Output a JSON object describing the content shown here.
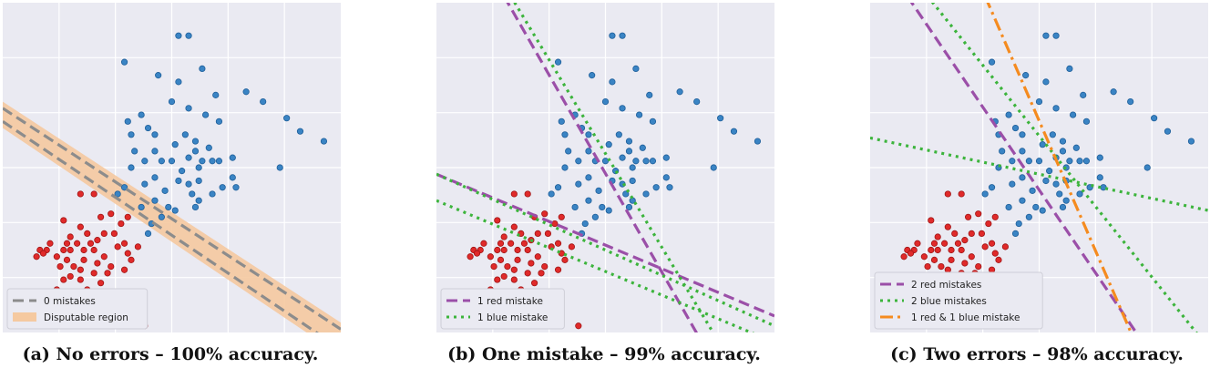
{
  "chart_data": [
    {
      "type": "scatter",
      "caption": "(a) No errors – 100% accuracy.",
      "legend": [
        {
          "label": "0 mistakes",
          "style": "dashed",
          "color": "#8c8c8c"
        },
        {
          "label": "Disputable region",
          "style": "patch",
          "color": "#f5c9a0"
        }
      ],
      "lines": [
        {
          "name": "0 mistakes",
          "color": "#8c8c8c",
          "dash": "dashed",
          "points": [
            [
              0.0,
              0.64
            ],
            [
              1.0,
              -0.05
            ]
          ]
        },
        {
          "name": "0 mistakes",
          "color": "#8c8c8c",
          "dash": "dashed",
          "points": [
            [
              0.0,
              0.68
            ],
            [
              1.0,
              0.01
            ]
          ]
        }
      ],
      "region": {
        "color": "#f5c9a0",
        "polygon": [
          [
            0.0,
            0.7
          ],
          [
            1.0,
            0.03
          ],
          [
            1.0,
            -0.07
          ],
          [
            0.0,
            0.62
          ]
        ]
      },
      "legend_position": "lower left"
    },
    {
      "type": "scatter",
      "caption": "(b) One mistake – 99% accuracy.",
      "legend": [
        {
          "label": "1 red mistake",
          "style": "dashed",
          "color": "#9b4fa8"
        },
        {
          "label": "1 blue mistake",
          "style": "dotted",
          "color": "#3cb43c"
        }
      ],
      "lines": [
        {
          "name": "1 red mistake",
          "color": "#9b4fa8",
          "dash": "dashed",
          "points": [
            [
              0.0,
              0.48
            ],
            [
              1.0,
              0.05
            ]
          ]
        },
        {
          "name": "1 red mistake",
          "color": "#9b4fa8",
          "dash": "dashed",
          "points": [
            [
              0.2,
              1.02
            ],
            [
              0.78,
              -0.02
            ]
          ]
        },
        {
          "name": "1 blue mistake",
          "color": "#3cb43c",
          "dash": "dotted",
          "points": [
            [
              0.0,
              0.48
            ],
            [
              1.0,
              0.02
            ]
          ]
        },
        {
          "name": "1 blue mistake",
          "color": "#3cb43c",
          "dash": "dotted",
          "points": [
            [
              0.0,
              0.4
            ],
            [
              1.0,
              -0.03
            ]
          ]
        },
        {
          "name": "1 blue mistake",
          "color": "#3cb43c",
          "dash": "dotted",
          "points": [
            [
              0.22,
              1.02
            ],
            [
              0.83,
              -0.02
            ]
          ]
        }
      ],
      "legend_position": "lower left"
    },
    {
      "type": "scatter",
      "caption": "(c) Two errors – 98% accuracy.",
      "legend": [
        {
          "label": "2 red mistakes",
          "style": "dashed",
          "color": "#9b4fa8"
        },
        {
          "label": "2 blue mistakes",
          "style": "dotted",
          "color": "#3cb43c"
        },
        {
          "label": "1 red & 1 blue mistake",
          "style": "dashdot",
          "color": "#f58b1f"
        }
      ],
      "lines": [
        {
          "name": "2 red mistakes",
          "color": "#9b4fa8",
          "dash": "dashed",
          "points": [
            [
              0.11,
              1.02
            ],
            [
              0.8,
              -0.02
            ]
          ]
        },
        {
          "name": "2 blue mistakes",
          "color": "#3cb43c",
          "dash": "dotted",
          "points": [
            [
              0.17,
              1.02
            ],
            [
              0.98,
              -0.02
            ]
          ]
        },
        {
          "name": "2 blue mistakes",
          "color": "#3cb43c",
          "dash": "dotted",
          "points": [
            [
              0.0,
              0.59
            ],
            [
              1.0,
              0.37
            ]
          ]
        },
        {
          "name": "1 red & 1 blue mistake",
          "color": "#f58b1f",
          "dash": "dashdot",
          "points": [
            [
              0.34,
              1.02
            ],
            [
              0.78,
              -0.02
            ]
          ]
        }
      ],
      "legend_position": "lower left"
    }
  ],
  "points": {
    "blue": [
      [
        0.52,
        0.9
      ],
      [
        0.55,
        0.9
      ],
      [
        0.36,
        0.82
      ],
      [
        0.46,
        0.78
      ],
      [
        0.52,
        0.76
      ],
      [
        0.59,
        0.8
      ],
      [
        0.72,
        0.73
      ],
      [
        0.77,
        0.7
      ],
      [
        0.5,
        0.7
      ],
      [
        0.55,
        0.68
      ],
      [
        0.63,
        0.72
      ],
      [
        0.6,
        0.66
      ],
      [
        0.64,
        0.64
      ],
      [
        0.41,
        0.66
      ],
      [
        0.37,
        0.64
      ],
      [
        0.43,
        0.62
      ],
      [
        0.45,
        0.6
      ],
      [
        0.54,
        0.6
      ],
      [
        0.57,
        0.58
      ],
      [
        0.51,
        0.57
      ],
      [
        0.61,
        0.56
      ],
      [
        0.64,
        0.52
      ],
      [
        0.59,
        0.52
      ],
      [
        0.55,
        0.53
      ],
      [
        0.47,
        0.52
      ],
      [
        0.42,
        0.52
      ],
      [
        0.38,
        0.6
      ],
      [
        0.39,
        0.55
      ],
      [
        0.68,
        0.53
      ],
      [
        0.84,
        0.65
      ],
      [
        0.88,
        0.61
      ],
      [
        0.95,
        0.58
      ],
      [
        0.82,
        0.5
      ],
      [
        0.69,
        0.44
      ],
      [
        0.68,
        0.47
      ],
      [
        0.55,
        0.45
      ],
      [
        0.52,
        0.46
      ],
      [
        0.48,
        0.43
      ],
      [
        0.45,
        0.47
      ],
      [
        0.42,
        0.45
      ],
      [
        0.49,
        0.38
      ],
      [
        0.51,
        0.37
      ],
      [
        0.56,
        0.42
      ],
      [
        0.58,
        0.46
      ],
      [
        0.62,
        0.52
      ],
      [
        0.38,
        0.5
      ],
      [
        0.45,
        0.55
      ],
      [
        0.5,
        0.52
      ],
      [
        0.53,
        0.49
      ],
      [
        0.58,
        0.5
      ],
      [
        0.57,
        0.55
      ],
      [
        0.45,
        0.4
      ],
      [
        0.41,
        0.38
      ],
      [
        0.36,
        0.44
      ],
      [
        0.34,
        0.42
      ],
      [
        0.62,
        0.42
      ],
      [
        0.65,
        0.44
      ],
      [
        0.58,
        0.4
      ],
      [
        0.57,
        0.38
      ],
      [
        0.43,
        0.3
      ],
      [
        0.44,
        0.33
      ],
      [
        0.47,
        0.35
      ]
    ],
    "red": [
      [
        0.23,
        0.42
      ],
      [
        0.27,
        0.42
      ],
      [
        0.18,
        0.34
      ],
      [
        0.32,
        0.36
      ],
      [
        0.35,
        0.33
      ],
      [
        0.37,
        0.35
      ],
      [
        0.29,
        0.35
      ],
      [
        0.23,
        0.32
      ],
      [
        0.2,
        0.29
      ],
      [
        0.25,
        0.3
      ],
      [
        0.3,
        0.3
      ],
      [
        0.33,
        0.3
      ],
      [
        0.28,
        0.28
      ],
      [
        0.14,
        0.27
      ],
      [
        0.19,
        0.27
      ],
      [
        0.22,
        0.27
      ],
      [
        0.26,
        0.27
      ],
      [
        0.13,
        0.25
      ],
      [
        0.18,
        0.25
      ],
      [
        0.2,
        0.25
      ],
      [
        0.24,
        0.25
      ],
      [
        0.27,
        0.25
      ],
      [
        0.3,
        0.23
      ],
      [
        0.1,
        0.23
      ],
      [
        0.16,
        0.23
      ],
      [
        0.19,
        0.22
      ],
      [
        0.24,
        0.22
      ],
      [
        0.28,
        0.21
      ],
      [
        0.34,
        0.26
      ],
      [
        0.37,
        0.24
      ],
      [
        0.36,
        0.27
      ],
      [
        0.11,
        0.25
      ],
      [
        0.12,
        0.24
      ],
      [
        0.21,
        0.2
      ],
      [
        0.23,
        0.19
      ],
      [
        0.27,
        0.18
      ],
      [
        0.32,
        0.2
      ],
      [
        0.38,
        0.22
      ],
      [
        0.4,
        0.26
      ],
      [
        0.17,
        0.2
      ],
      [
        0.18,
        0.16
      ],
      [
        0.2,
        0.17
      ],
      [
        0.23,
        0.16
      ],
      [
        0.29,
        0.15
      ],
      [
        0.31,
        0.18
      ],
      [
        0.36,
        0.19
      ],
      [
        0.16,
        0.13
      ],
      [
        0.25,
        0.13
      ],
      [
        0.2,
        0.1
      ],
      [
        0.27,
        0.1
      ],
      [
        0.33,
        0.11
      ],
      [
        0.17,
        0.08
      ],
      [
        0.34,
        0.06
      ],
      [
        0.42,
        0.02
      ]
    ]
  }
}
